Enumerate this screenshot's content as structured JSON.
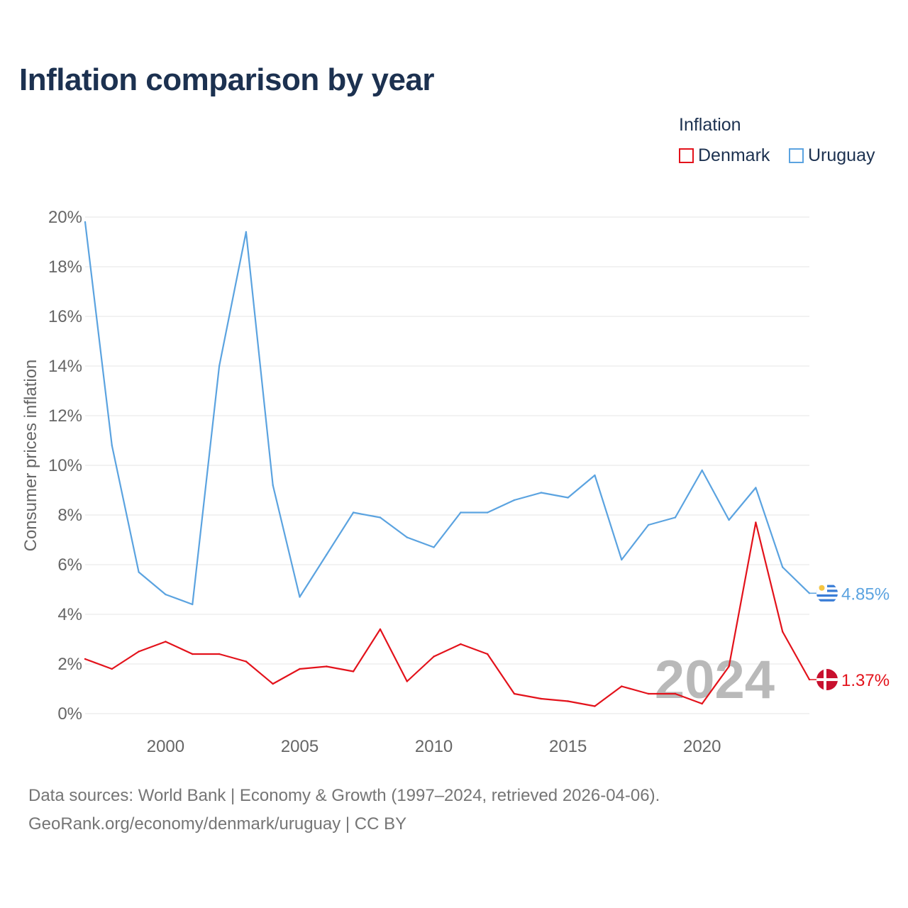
{
  "title": "Inflation comparison by year",
  "legend": {
    "title": "Inflation",
    "items": [
      {
        "name": "Denmark",
        "color": "#e3121b"
      },
      {
        "name": "Uruguay",
        "color": "#5ba3e0"
      }
    ]
  },
  "watermark_year": "2024",
  "footer": {
    "source": "Data sources: World Bank | Economy & Growth (1997–2024, retrieved 2026-04-06).",
    "credit": "GeoRank.org/economy/denmark/uruguay | CC BY"
  },
  "chart_data": {
    "type": "line",
    "title": "Inflation comparison by year",
    "xlabel": "",
    "ylabel": "Consumer prices inflation",
    "xlim": [
      1997,
      2024
    ],
    "ylim": [
      0,
      20
    ],
    "yticks": [
      0,
      2,
      4,
      6,
      8,
      10,
      12,
      14,
      16,
      18,
      20
    ],
    "ytick_labels": [
      "0%",
      "2%",
      "4%",
      "6%",
      "8%",
      "10%",
      "12%",
      "14%",
      "16%",
      "18%",
      "20%"
    ],
    "xticks": [
      2000,
      2005,
      2010,
      2015,
      2020
    ],
    "xtick_labels": [
      "2000",
      "2005",
      "2010",
      "2015",
      "2020"
    ],
    "grid": true,
    "legend_position": "top-right",
    "x": [
      1997,
      1998,
      1999,
      2000,
      2001,
      2002,
      2003,
      2004,
      2005,
      2006,
      2007,
      2008,
      2009,
      2010,
      2011,
      2012,
      2013,
      2014,
      2015,
      2016,
      2017,
      2018,
      2019,
      2020,
      2021,
      2022,
      2023,
      2024
    ],
    "series": [
      {
        "name": "Uruguay",
        "color": "#5ba3e0",
        "end_label": "4.85%",
        "values": [
          19.8,
          10.8,
          5.7,
          4.8,
          4.4,
          14.0,
          19.4,
          9.2,
          4.7,
          6.4,
          8.1,
          7.9,
          7.1,
          6.7,
          8.1,
          8.1,
          8.6,
          8.9,
          8.7,
          9.6,
          6.2,
          7.6,
          7.9,
          9.8,
          7.8,
          9.1,
          5.9,
          4.85
        ]
      },
      {
        "name": "Denmark",
        "color": "#e3121b",
        "end_label": "1.37%",
        "values": [
          2.2,
          1.8,
          2.5,
          2.9,
          2.4,
          2.4,
          2.1,
          1.2,
          1.8,
          1.9,
          1.7,
          3.4,
          1.3,
          2.3,
          2.8,
          2.4,
          0.8,
          0.6,
          0.5,
          0.3,
          1.1,
          0.8,
          0.8,
          0.4,
          1.9,
          7.7,
          3.3,
          1.37
        ]
      }
    ]
  }
}
